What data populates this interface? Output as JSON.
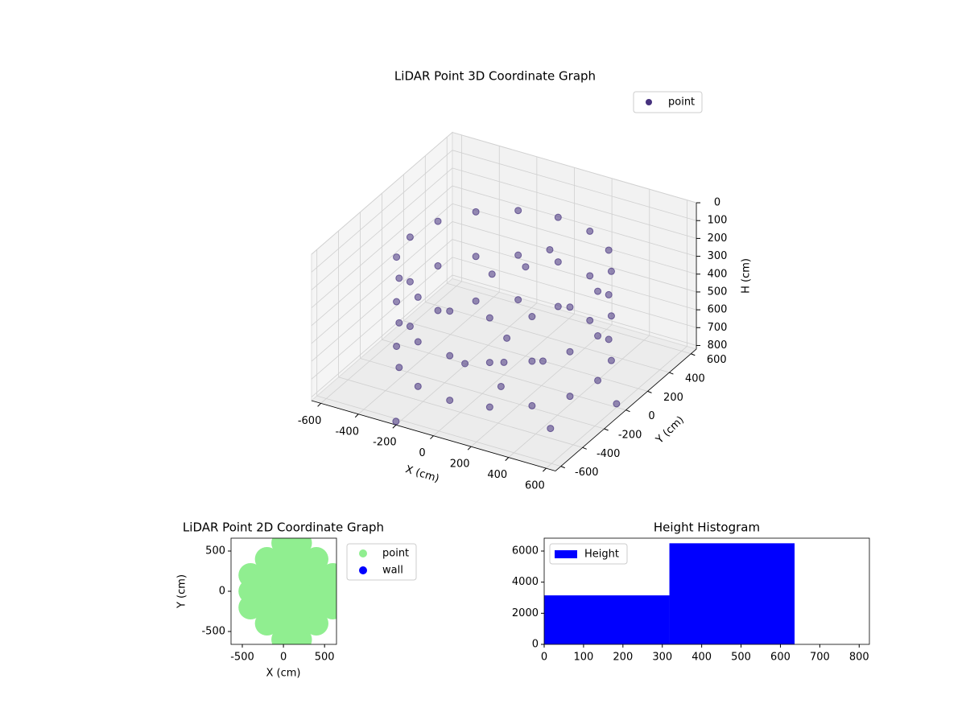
{
  "chart_data": [
    {
      "type": "scatter3d",
      "title": "LiDAR Point 3D Coordinate Graph",
      "x_label": "X (cm)",
      "y_label": "Y (cm)",
      "z_label": "H (cm)",
      "xlim": [
        -650,
        650
      ],
      "xticks": [
        -600,
        -400,
        -200,
        0,
        200,
        400,
        600
      ],
      "ylim": [
        -650,
        650
      ],
      "yticks": [
        -600,
        -400,
        -200,
        0,
        200,
        400,
        600
      ],
      "zlim": [
        820,
        0
      ],
      "zticks": [
        0,
        100,
        200,
        300,
        400,
        500,
        600,
        700,
        800
      ],
      "grid": true,
      "legend": "upper right",
      "series": [
        {
          "name": "point",
          "color": "#46327e",
          "x": [
            500,
            462,
            354,
            191,
            0,
            -191,
            -354,
            -462,
            -500,
            -462,
            -354,
            -191,
            0,
            191,
            354,
            462,
            500,
            462,
            354,
            191,
            0,
            -191,
            -354,
            -462,
            -500,
            -462,
            -354,
            -191,
            0,
            191,
            354,
            462,
            500,
            462,
            354,
            191,
            0,
            -191,
            -354,
            -462,
            -500,
            -462,
            -354,
            -191,
            0,
            191,
            354,
            462,
            0,
            150,
            -150,
            100,
            -100,
            100,
            0,
            -150,
            -200,
            450,
            600
          ],
          "y": [
            0,
            191,
            354,
            462,
            500,
            462,
            354,
            191,
            0,
            -191,
            -354,
            -462,
            -500,
            -462,
            -354,
            -191,
            0,
            191,
            354,
            462,
            500,
            462,
            354,
            191,
            0,
            -191,
            -354,
            -462,
            -500,
            -462,
            -354,
            -191,
            0,
            191,
            354,
            462,
            500,
            462,
            354,
            191,
            0,
            -191,
            -354,
            -462,
            -500,
            -462,
            -354,
            -191,
            0,
            100,
            -100,
            -200,
            200,
            250,
            200,
            150,
            -650,
            -350,
            0
          ],
          "z": [
            200,
            200,
            200,
            200,
            200,
            200,
            200,
            200,
            200,
            200,
            200,
            200,
            200,
            200,
            200,
            200,
            450,
            450,
            450,
            450,
            450,
            450,
            450,
            450,
            450,
            450,
            450,
            450,
            450,
            450,
            450,
            450,
            700,
            700,
            700,
            700,
            700,
            700,
            700,
            700,
            700,
            700,
            700,
            700,
            700,
            700,
            700,
            700,
            750,
            750,
            750,
            750,
            750,
            220,
            320,
            380,
            800,
            800,
            800
          ]
        }
      ]
    },
    {
      "type": "scatter",
      "title": "LiDAR Point 2D Coordinate Graph",
      "x_label": "X (cm)",
      "y_label": "Y (cm)",
      "xlim": [
        -637,
        645
      ],
      "xticks": [
        -500,
        0,
        500
      ],
      "ylim": [
        -660,
        660
      ],
      "yticks": [
        -500,
        0,
        500
      ],
      "legend": "outside upper right",
      "series": [
        {
          "name": "point",
          "color": "#90ee90",
          "x": [
            -400,
            -400,
            -400,
            -200,
            -200,
            -200,
            -200,
            -200,
            0,
            0,
            0,
            0,
            0,
            0,
            0,
            200,
            200,
            200,
            200,
            200,
            200,
            200,
            400,
            400,
            400,
            400,
            400,
            600,
            600,
            600
          ],
          "y": [
            -200,
            0,
            200,
            -400,
            -200,
            0,
            200,
            400,
            -600,
            -400,
            -200,
            0,
            200,
            400,
            600,
            -600,
            -400,
            -200,
            0,
            200,
            400,
            600,
            -400,
            -200,
            0,
            200,
            400,
            -200,
            0,
            200
          ]
        },
        {
          "name": "wall",
          "color": "#0000ff",
          "x": [],
          "y": []
        }
      ]
    },
    {
      "type": "histogram",
      "title": "Height Histogram",
      "name": "Height",
      "color": "#0000ff",
      "bins": [
        0,
        318,
        636
      ],
      "counts": [
        3150,
        6500
      ],
      "xlim": [
        0,
        826
      ],
      "xticks": [
        0,
        100,
        200,
        300,
        400,
        500,
        600,
        700,
        800
      ],
      "ylim": [
        0,
        6828
      ],
      "yticks": [
        0,
        2000,
        4000,
        6000
      ],
      "legend": "upper left"
    }
  ]
}
